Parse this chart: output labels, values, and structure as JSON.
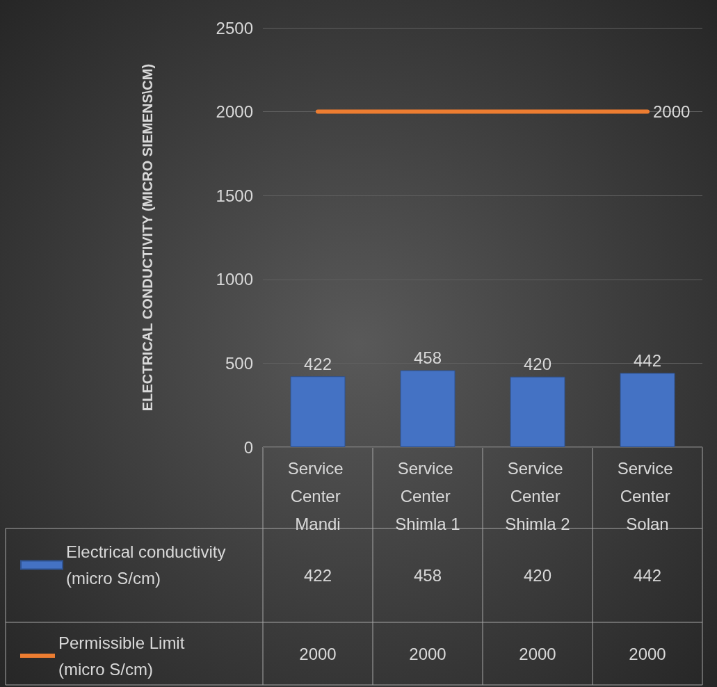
{
  "chart_data": {
    "type": "bar",
    "ylabel": "ELECTRICAL CONDUCTIVITY (MICRO SIEMENS\\CM)",
    "categories": [
      "Service Center Mandi",
      "Service Center Shimla 1",
      "Service Center Shimla 2",
      "Service Center Solan"
    ],
    "series": [
      {
        "name": "Electrical conductivity (micro S/cm)",
        "color": "#4472c4",
        "values": [
          422,
          458,
          420,
          442
        ],
        "value_labels": [
          "422",
          "458",
          "420",
          "442"
        ]
      },
      {
        "name": "Permissible Limit (micro S/cm)",
        "type": "line",
        "color": "#ed7d31",
        "values": [
          2000,
          2000,
          2000,
          2000
        ],
        "value_labels": [
          null,
          null,
          null,
          "2000"
        ]
      }
    ],
    "ylim": [
      0,
      2500
    ],
    "yticks": [
      0,
      500,
      1000,
      1500,
      2000,
      2500
    ],
    "grid": "y",
    "legend": "bottom left",
    "data_labels": true,
    "marker": "none"
  }
}
